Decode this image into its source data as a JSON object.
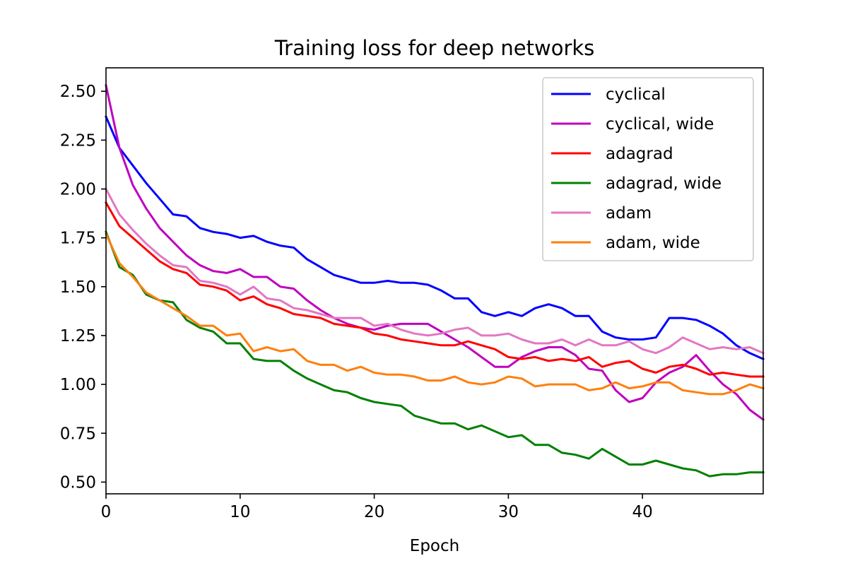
{
  "chart_data": {
    "type": "line",
    "title": "Training loss for deep networks",
    "xlabel": "Epoch",
    "ylabel": "",
    "xlim": [
      0,
      49
    ],
    "ylim": [
      0.44,
      2.62
    ],
    "x_ticks": [
      0,
      10,
      20,
      30,
      40
    ],
    "y_ticks": [
      0.5,
      0.75,
      1.0,
      1.25,
      1.5,
      1.75,
      2.0,
      2.25,
      2.5
    ],
    "x_tick_labels": [
      "0",
      "10",
      "20",
      "30",
      "40"
    ],
    "y_tick_labels": [
      "0.50",
      "0.75",
      "1.00",
      "1.25",
      "1.50",
      "1.75",
      "2.00",
      "2.25",
      "2.50"
    ],
    "grid": false,
    "legend_position": "top-right",
    "x": [
      0,
      1,
      2,
      3,
      4,
      5,
      6,
      7,
      8,
      9,
      10,
      11,
      12,
      13,
      14,
      15,
      16,
      17,
      18,
      19,
      20,
      21,
      22,
      23,
      24,
      25,
      26,
      27,
      28,
      29,
      30,
      31,
      32,
      33,
      34,
      35,
      36,
      37,
      38,
      39,
      40,
      41,
      42,
      43,
      44,
      45,
      46,
      47,
      48,
      49
    ],
    "series": [
      {
        "name": "cyclical",
        "color": "#0000ff",
        "values": [
          2.37,
          2.21,
          2.12,
          2.03,
          1.95,
          1.87,
          1.86,
          1.8,
          1.78,
          1.77,
          1.75,
          1.76,
          1.73,
          1.71,
          1.7,
          1.64,
          1.6,
          1.56,
          1.54,
          1.52,
          1.52,
          1.53,
          1.52,
          1.52,
          1.51,
          1.48,
          1.44,
          1.44,
          1.37,
          1.35,
          1.37,
          1.35,
          1.39,
          1.41,
          1.39,
          1.35,
          1.35,
          1.27,
          1.24,
          1.23,
          1.23,
          1.24,
          1.34,
          1.34,
          1.33,
          1.3,
          1.26,
          1.2,
          1.16,
          1.13
        ]
      },
      {
        "name": "cyclical, wide",
        "color": "#bf00bf",
        "values": [
          2.53,
          2.21,
          2.02,
          1.9,
          1.8,
          1.73,
          1.66,
          1.61,
          1.58,
          1.57,
          1.59,
          1.55,
          1.55,
          1.5,
          1.49,
          1.43,
          1.38,
          1.34,
          1.31,
          1.29,
          1.28,
          1.3,
          1.31,
          1.31,
          1.31,
          1.27,
          1.23,
          1.19,
          1.14,
          1.09,
          1.09,
          1.14,
          1.17,
          1.19,
          1.19,
          1.15,
          1.08,
          1.07,
          0.97,
          0.91,
          0.93,
          1.01,
          1.06,
          1.09,
          1.15,
          1.07,
          1.0,
          0.95,
          0.87,
          0.82
        ]
      },
      {
        "name": "adagrad",
        "color": "#ff0000",
        "values": [
          1.93,
          1.81,
          1.75,
          1.69,
          1.63,
          1.59,
          1.57,
          1.51,
          1.5,
          1.48,
          1.43,
          1.45,
          1.41,
          1.39,
          1.36,
          1.35,
          1.34,
          1.31,
          1.3,
          1.29,
          1.26,
          1.25,
          1.23,
          1.22,
          1.21,
          1.2,
          1.2,
          1.22,
          1.2,
          1.18,
          1.14,
          1.13,
          1.14,
          1.12,
          1.13,
          1.12,
          1.14,
          1.09,
          1.11,
          1.12,
          1.08,
          1.06,
          1.09,
          1.1,
          1.08,
          1.05,
          1.06,
          1.05,
          1.04,
          1.04
        ]
      },
      {
        "name": "adagrad, wide",
        "color": "#008000",
        "values": [
          1.78,
          1.6,
          1.56,
          1.46,
          1.43,
          1.42,
          1.33,
          1.29,
          1.27,
          1.21,
          1.21,
          1.13,
          1.12,
          1.12,
          1.07,
          1.03,
          1.0,
          0.97,
          0.96,
          0.93,
          0.91,
          0.9,
          0.89,
          0.84,
          0.82,
          0.8,
          0.8,
          0.77,
          0.79,
          0.76,
          0.73,
          0.74,
          0.69,
          0.69,
          0.65,
          0.64,
          0.62,
          0.67,
          0.63,
          0.59,
          0.59,
          0.61,
          0.59,
          0.57,
          0.56,
          0.53,
          0.54,
          0.54,
          0.55,
          0.55
        ]
      },
      {
        "name": "adam",
        "color": "#e377c2",
        "values": [
          2.0,
          1.87,
          1.79,
          1.72,
          1.66,
          1.61,
          1.6,
          1.53,
          1.52,
          1.5,
          1.46,
          1.5,
          1.44,
          1.43,
          1.39,
          1.38,
          1.36,
          1.34,
          1.34,
          1.34,
          1.3,
          1.31,
          1.28,
          1.26,
          1.25,
          1.26,
          1.28,
          1.29,
          1.25,
          1.25,
          1.26,
          1.23,
          1.21,
          1.21,
          1.23,
          1.2,
          1.23,
          1.2,
          1.2,
          1.22,
          1.18,
          1.16,
          1.19,
          1.24,
          1.21,
          1.18,
          1.19,
          1.18,
          1.19,
          1.16
        ]
      },
      {
        "name": "adam, wide",
        "color": "#ff7f0e",
        "values": [
          1.77,
          1.62,
          1.55,
          1.47,
          1.43,
          1.39,
          1.35,
          1.3,
          1.3,
          1.25,
          1.26,
          1.17,
          1.19,
          1.17,
          1.18,
          1.12,
          1.1,
          1.1,
          1.07,
          1.09,
          1.06,
          1.05,
          1.05,
          1.04,
          1.02,
          1.02,
          1.04,
          1.01,
          1.0,
          1.01,
          1.04,
          1.03,
          0.99,
          1.0,
          1.0,
          1.0,
          0.97,
          0.98,
          1.01,
          0.98,
          0.99,
          1.01,
          1.01,
          0.97,
          0.96,
          0.95,
          0.95,
          0.97,
          1.0,
          0.98
        ]
      }
    ]
  }
}
